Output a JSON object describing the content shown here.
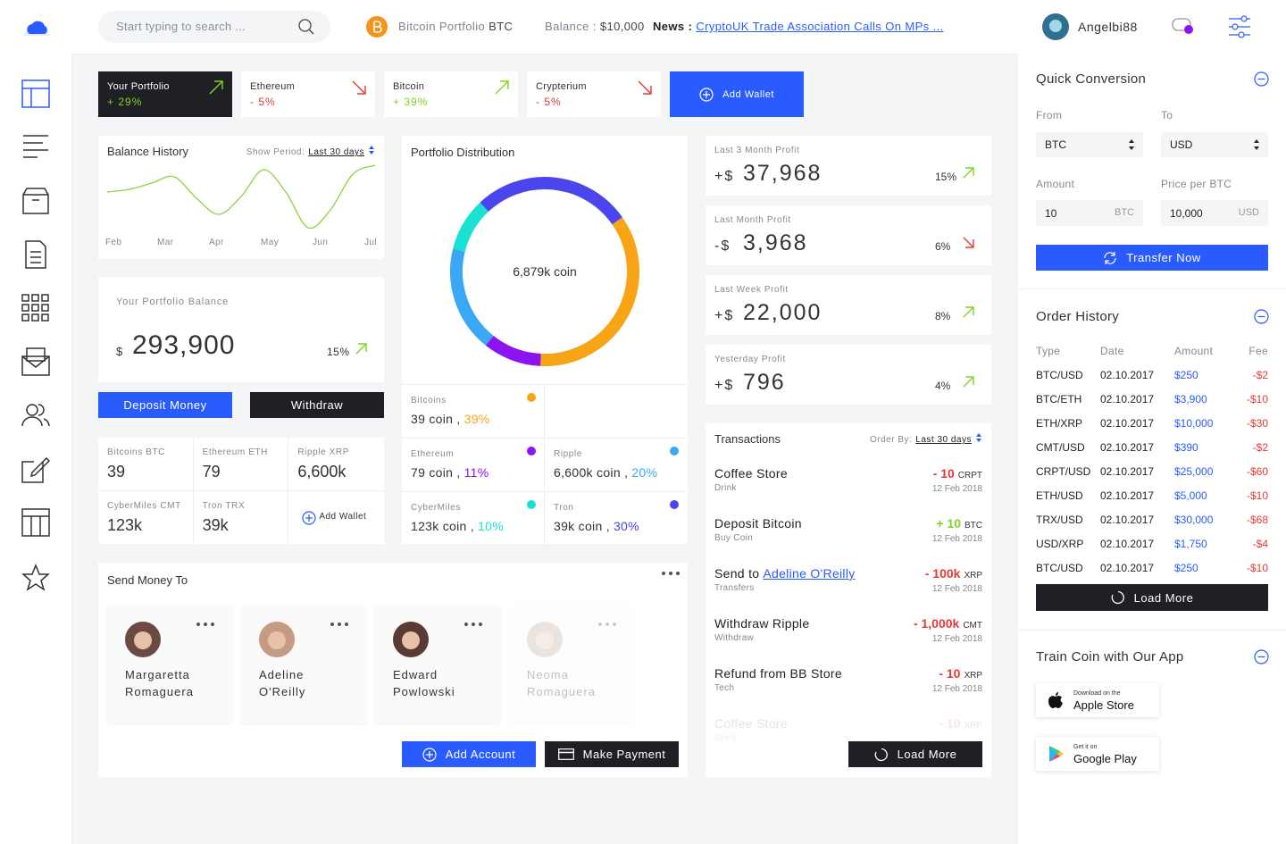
{
  "header": {
    "search_placeholder": "Start typing to search ...",
    "portfolio": "Bitcoin Portfolio",
    "portfolio_code": "BTC",
    "balance_label": "Balance :",
    "balance": "$10,000",
    "news_label": "News :",
    "news": "CryptoUK Trade Association Calls On MPs ...",
    "user": "Angelbi88"
  },
  "tabs": [
    {
      "name": "Your Portfolio",
      "change": "+ 29%",
      "trend": "up"
    },
    {
      "name": "Ethereum",
      "change": "- 5%",
      "trend": "down"
    },
    {
      "name": "Bitcoin",
      "change": "+ 39%",
      "trend": "up"
    },
    {
      "name": "Crypterium",
      "change": "- 5%",
      "trend": "down"
    }
  ],
  "add_wallet": "Add Wallet",
  "balance_history": {
    "title": "Balance History",
    "period_label": "Show Period:",
    "period": "Last 30 days",
    "months": [
      "Feb",
      "Mar",
      "Apr",
      "May",
      "Jun",
      "Jul"
    ],
    "values": [
      45,
      48,
      55,
      62,
      38,
      20,
      40,
      70,
      45,
      5,
      25,
      65,
      75
    ],
    "color": "#8fd13f"
  },
  "portfolio_balance": {
    "label": "Your Portfolio Balance",
    "currency": "$",
    "value": "293,900",
    "change": "15%",
    "trend": "up"
  },
  "deposit": "Deposit Money",
  "withdraw": "Withdraw",
  "wallets": [
    {
      "name": "Bitcoins BTC",
      "value": "39"
    },
    {
      "name": "Ethereum ETH",
      "value": "79"
    },
    {
      "name": "Ripple XRP",
      "value": "6,600k"
    },
    {
      "name": "CyberMiles CMT",
      "value": "123k"
    },
    {
      "name": "Tron TRX",
      "value": "39k"
    }
  ],
  "distribution": {
    "title": "Portfolio Distribution",
    "center": "6,879k coin",
    "segments": [
      {
        "name": "Bitcoins",
        "coins": "39 coin ,",
        "share": 39,
        "share_label": "39%",
        "color": "#f7a416"
      },
      {
        "name": "Ethereum",
        "coins": "79 coin ,",
        "share": 11,
        "share_label": "11%",
        "color": "#8b14f0"
      },
      {
        "name": "Ripple",
        "coins": "6,600k coin ,",
        "share": 20,
        "share_label": "20%",
        "color": "#3aa8f5"
      },
      {
        "name": "CyberMiles",
        "coins": "123k coin ,",
        "share": 10,
        "share_label": "10%",
        "color": "#19e2d3"
      },
      {
        "name": "Tron",
        "coins": "39k coin ,",
        "share": 30,
        "share_label": "30%",
        "color": "#4b45ee"
      }
    ]
  },
  "profits": [
    {
      "label": "Last 3 Month Profit",
      "sign": "+$",
      "value": "37,968",
      "change": "15%",
      "trend": "up"
    },
    {
      "label": "Last Month Profit",
      "sign": "-$",
      "value": "3,968",
      "change": "6%",
      "trend": "down"
    },
    {
      "label": "Last Week Profit",
      "sign": "+$",
      "value": "22,000",
      "change": "8%",
      "trend": "up"
    },
    {
      "label": "Yesterday Profit",
      "sign": "+$",
      "value": "796",
      "change": "4%",
      "trend": "up"
    }
  ],
  "transactions": {
    "title": "Transactions",
    "order_label": "Order By:",
    "order": "Last 30 days",
    "load_more": "Load More",
    "items": [
      {
        "name": "Coffee Store",
        "sub": "Drink",
        "amount": "- 10",
        "unit": "CRPT",
        "date": "12 Feb 2018",
        "color": "#e53935"
      },
      {
        "name": "Deposit Bitcoin",
        "sub": "Buy Coin",
        "amount": "+ 10",
        "unit": "BTC",
        "date": "12 Feb 2018",
        "color": "#7ed321"
      },
      {
        "name": "Send to",
        "link": "Adeline O'Reilly",
        "sub": "Transfers",
        "amount": "- 100k",
        "unit": "XRP",
        "date": "12 Feb 2018",
        "color": "#e53935"
      },
      {
        "name": "Withdraw Ripple",
        "sub": "Withdraw",
        "amount": "- 1,000k",
        "unit": "CMT",
        "date": "12 Feb 2018",
        "color": "#e53935"
      },
      {
        "name": "Refund from BB Store",
        "sub": "Tech",
        "amount": "- 10",
        "unit": "XRP",
        "date": "12 Feb 2018",
        "color": "#e53935"
      },
      {
        "name": "Coffee Store",
        "sub": "Drink",
        "amount": "- 10",
        "unit": "XRP",
        "color": "#e53935",
        "faded": true
      }
    ]
  },
  "send_money": {
    "title": "Send Money To",
    "add_account": "Add Account",
    "make_payment": "Make Payment",
    "contacts": [
      {
        "first": "Margaretta",
        "last": "Romaguera",
        "color": "#6b4a43"
      },
      {
        "first": "Adeline",
        "last": "O'Reilly",
        "color": "#c59b83"
      },
      {
        "first": "Edward",
        "last": "Powlowski",
        "color": "#5a3a35"
      },
      {
        "first": "Neoma",
        "last": "Romaguera",
        "color": "#b9a89a",
        "faded": true
      }
    ]
  },
  "conversion": {
    "title": "Quick Conversion",
    "from_label": "From",
    "to_label": "To",
    "from": "BTC",
    "to": "USD",
    "amount_label": "Amount",
    "price_label": "Price per BTC",
    "amount": "10",
    "amount_unit": "BTC",
    "price": "10,000",
    "price_unit": "USD",
    "button": "Transfer Now"
  },
  "order_history": {
    "title": "Order History",
    "columns": [
      "Type",
      "Date",
      "Amount",
      "Fee"
    ],
    "load_more": "Load More",
    "rows": [
      [
        "BTC/USD",
        "02.10.2017",
        "$250",
        "-$2"
      ],
      [
        "BTC/ETH",
        "02.10.2017",
        "$3,900",
        "-$10"
      ],
      [
        "ETH/XRP",
        "02.10.2017",
        "$10,000",
        "-$30"
      ],
      [
        "CMT/USD",
        "02.10.2017",
        "$390",
        "-$2"
      ],
      [
        "CRPT/USD",
        "02.10.2017",
        "$25,000",
        "-$60"
      ],
      [
        "ETH/USD",
        "02.10.2017",
        "$5,000",
        "-$10"
      ],
      [
        "TRX/USD",
        "02.10.2017",
        "$30,000",
        "-$68"
      ],
      [
        "USD/XRP",
        "02.10.2017",
        "$1,750",
        "-$4"
      ],
      [
        "BTC/USD",
        "02.10.2017",
        "$250",
        "-$10"
      ]
    ]
  },
  "app": {
    "title": "Train Coin with Our App",
    "apple_small": "Download on the",
    "apple": "Apple Store",
    "google_small": "Get it on",
    "google": "Google Play"
  }
}
